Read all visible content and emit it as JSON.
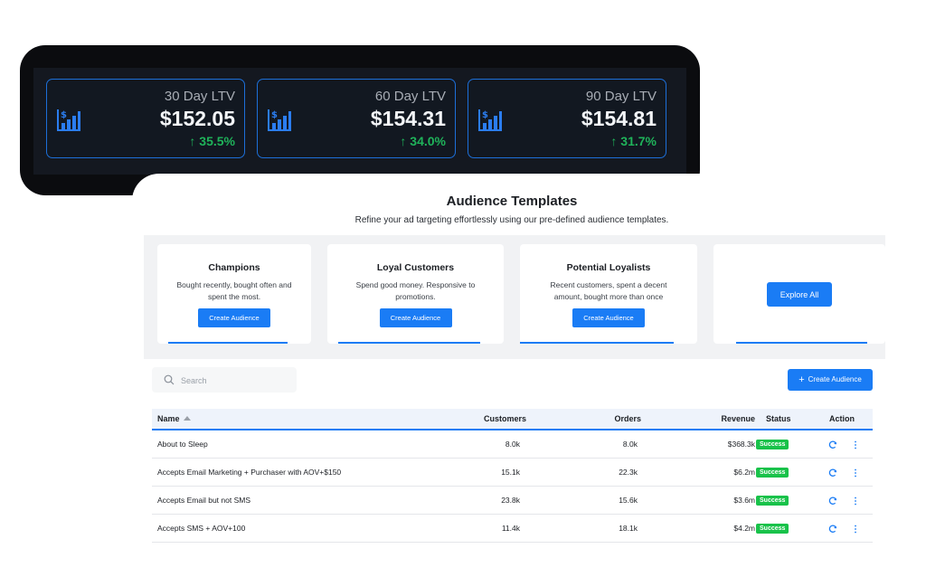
{
  "ltv_cards": [
    {
      "label": "30 Day LTV",
      "value": "$152.05",
      "change": "↑ 35.5%"
    },
    {
      "label": "60 Day LTV",
      "value": "$154.31",
      "change": "↑ 34.0%"
    },
    {
      "label": "90 Day LTV",
      "value": "$154.81",
      "change": "↑ 31.7%"
    }
  ],
  "icons": {
    "ltv": "dollar-bar-chart-icon",
    "search": "search-icon",
    "refresh": "refresh-icon",
    "more": "more-vertical-icon",
    "sort": "sort-asc-icon"
  },
  "colors": {
    "accent": "#1a7cf5",
    "success": "#19c24a",
    "positive_change": "#1fb35a",
    "dark_panel": "#0b0c0f"
  },
  "templates_section": {
    "title": "Audience Templates",
    "subtitle": "Refine your ad targeting effortlessly using our pre-defined audience templates.",
    "cards": [
      {
        "title": "Champions",
        "desc_line1": "Bought recently, bought often and",
        "desc_line2": "spent the most.",
        "button": "Create Audience"
      },
      {
        "title": "Loyal Customers",
        "desc_line1": "Spend good money. Responsive to",
        "desc_line2": "promotions.",
        "button": "Create Audience"
      },
      {
        "title": "Potential Loyalists",
        "desc_line1": "Recent customers, spent a decent",
        "desc_line2": "amount, bought more than once",
        "button": "Create Audience"
      }
    ],
    "explore_button": "Explore All"
  },
  "search": {
    "placeholder": "Search"
  },
  "create_button": "Create Audience",
  "table": {
    "headers": {
      "name": "Name",
      "customers": "Customers",
      "orders": "Orders",
      "revenue": "Revenue",
      "status": "Status",
      "action": "Action"
    },
    "rows": [
      {
        "name": "About to Sleep",
        "customers": "8.0k",
        "orders": "8.0k",
        "revenue": "$368.3k",
        "status": "Success"
      },
      {
        "name": "Accepts Email Marketing + Purchaser with AOV+$150",
        "customers": "15.1k",
        "orders": "22.3k",
        "revenue": "$6.2m",
        "status": "Success"
      },
      {
        "name": "Accepts Email but not SMS",
        "customers": "23.8k",
        "orders": "15.6k",
        "revenue": "$3.6m",
        "status": "Success"
      },
      {
        "name": "Accepts SMS + AOV+100",
        "customers": "11.4k",
        "orders": "18.1k",
        "revenue": "$4.2m",
        "status": "Success"
      }
    ]
  }
}
